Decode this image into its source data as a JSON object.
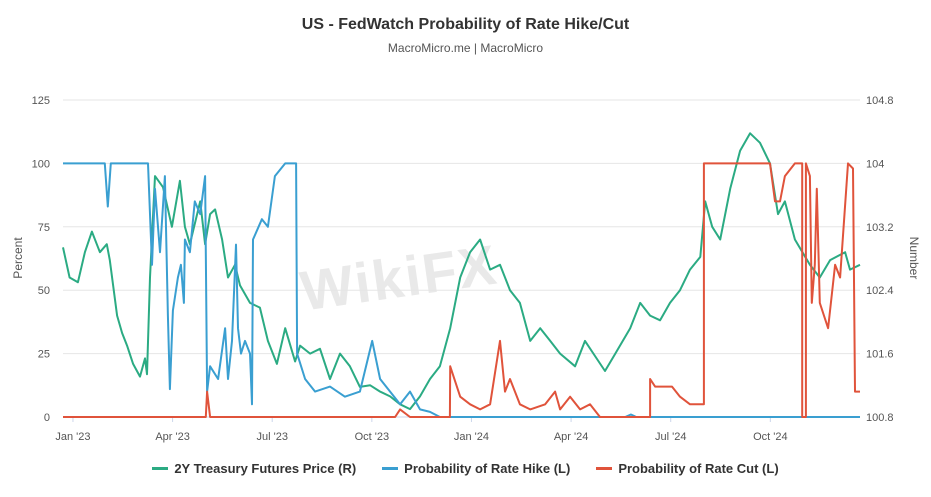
{
  "chart_data": {
    "type": "line",
    "title": "US - FedWatch Probability of Rate Hike/Cut",
    "subtitle": "MacroMicro.me | MacroMicro",
    "x_unit": "months since Jan 2023",
    "xlim": [
      -0.3,
      23.7
    ],
    "x_ticks": [
      {
        "x": 0,
        "label": "Jan '23"
      },
      {
        "x": 3,
        "label": "Apr '23"
      },
      {
        "x": 6,
        "label": "Jul '23"
      },
      {
        "x": 9,
        "label": "Oct '23"
      },
      {
        "x": 12,
        "label": "Jan '24"
      },
      {
        "x": 15,
        "label": "Apr '24"
      },
      {
        "x": 18,
        "label": "Jul '24"
      },
      {
        "x": 21,
        "label": "Oct '24"
      }
    ],
    "y_left": {
      "label": "Percent",
      "ylim": [
        0,
        125
      ],
      "ticks": [
        "0",
        "25",
        "50",
        "75",
        "100",
        "125"
      ]
    },
    "y_right": {
      "label": "Number",
      "ylim": [
        100.8,
        104.8
      ],
      "ticks": [
        "100.8",
        "101.6",
        "102.4",
        "103.2",
        "104",
        "104.8"
      ]
    },
    "grid": true,
    "legend_position": "bottom",
    "series": [
      {
        "name": "2Y Treasury Futures Price (R)",
        "axis": "right",
        "color": "#2bab83",
        "points": [
          [
            -0.3,
            102.94
          ],
          [
            -0.1,
            102.56
          ],
          [
            0.15,
            102.5
          ],
          [
            0.36,
            102.88
          ],
          [
            0.57,
            103.14
          ],
          [
            0.81,
            102.88
          ],
          [
            1.02,
            102.98
          ],
          [
            1.11,
            102.78
          ],
          [
            1.33,
            102.08
          ],
          [
            1.48,
            101.86
          ],
          [
            1.63,
            101.7
          ],
          [
            1.81,
            101.47
          ],
          [
            2.02,
            101.31
          ],
          [
            2.17,
            101.54
          ],
          [
            2.23,
            101.34
          ],
          [
            2.32,
            102.56
          ],
          [
            2.47,
            103.84
          ],
          [
            2.71,
            103.7
          ],
          [
            2.98,
            103.2
          ],
          [
            3.22,
            103.78
          ],
          [
            3.37,
            103.2
          ],
          [
            3.52,
            102.98
          ],
          [
            3.83,
            103.52
          ],
          [
            3.98,
            102.98
          ],
          [
            4.13,
            103.36
          ],
          [
            4.28,
            103.42
          ],
          [
            4.49,
            103.04
          ],
          [
            4.67,
            102.56
          ],
          [
            4.88,
            102.72
          ],
          [
            5.03,
            102.46
          ],
          [
            5.33,
            102.24
          ],
          [
            5.63,
            102.18
          ],
          [
            5.87,
            101.76
          ],
          [
            6.14,
            101.47
          ],
          [
            6.39,
            101.92
          ],
          [
            6.69,
            101.5
          ],
          [
            6.84,
            101.7
          ],
          [
            7.14,
            101.6
          ],
          [
            7.44,
            101.66
          ],
          [
            7.74,
            101.28
          ],
          [
            8.04,
            101.6
          ],
          [
            8.34,
            101.44
          ],
          [
            8.64,
            101.18
          ],
          [
            8.95,
            101.2
          ],
          [
            9.25,
            101.12
          ],
          [
            9.55,
            101.06
          ],
          [
            9.85,
            100.96
          ],
          [
            10.15,
            100.9
          ],
          [
            10.45,
            101.06
          ],
          [
            10.75,
            101.28
          ],
          [
            11.05,
            101.44
          ],
          [
            11.36,
            101.92
          ],
          [
            11.66,
            102.56
          ],
          [
            11.96,
            102.88
          ],
          [
            12.26,
            103.04
          ],
          [
            12.56,
            102.66
          ],
          [
            12.86,
            102.72
          ],
          [
            13.16,
            102.4
          ],
          [
            13.46,
            102.24
          ],
          [
            13.77,
            101.76
          ],
          [
            14.07,
            101.92
          ],
          [
            14.37,
            101.76
          ],
          [
            14.67,
            101.6
          ],
          [
            15.12,
            101.44
          ],
          [
            15.42,
            101.76
          ],
          [
            15.72,
            101.57
          ],
          [
            16.02,
            101.38
          ],
          [
            16.33,
            101.6
          ],
          [
            16.78,
            101.92
          ],
          [
            17.08,
            102.24
          ],
          [
            17.38,
            102.08
          ],
          [
            17.68,
            102.02
          ],
          [
            17.98,
            102.24
          ],
          [
            18.28,
            102.4
          ],
          [
            18.58,
            102.66
          ],
          [
            18.89,
            102.82
          ],
          [
            19.04,
            103.52
          ],
          [
            19.25,
            103.2
          ],
          [
            19.49,
            103.04
          ],
          [
            19.79,
            103.68
          ],
          [
            20.09,
            104.16
          ],
          [
            20.39,
            104.38
          ],
          [
            20.69,
            104.26
          ],
          [
            20.99,
            104.0
          ],
          [
            21.23,
            103.36
          ],
          [
            21.44,
            103.52
          ],
          [
            21.74,
            103.04
          ],
          [
            22.19,
            102.72
          ],
          [
            22.49,
            102.56
          ],
          [
            22.8,
            102.78
          ],
          [
            23.25,
            102.88
          ],
          [
            23.4,
            102.66
          ],
          [
            23.7,
            102.72
          ]
        ]
      },
      {
        "name": "Probability of Rate Hike (L)",
        "axis": "left",
        "color": "#3a9fd1",
        "points": [
          [
            -0.3,
            100
          ],
          [
            0.96,
            100
          ],
          [
            1.05,
            83
          ],
          [
            1.14,
            100
          ],
          [
            2.26,
            100
          ],
          [
            2.38,
            60
          ],
          [
            2.47,
            90
          ],
          [
            2.62,
            65
          ],
          [
            2.77,
            95
          ],
          [
            2.86,
            40
          ],
          [
            2.92,
            11
          ],
          [
            3.01,
            42
          ],
          [
            3.16,
            55
          ],
          [
            3.25,
            60
          ],
          [
            3.34,
            45
          ],
          [
            3.37,
            70
          ],
          [
            3.52,
            65
          ],
          [
            3.67,
            85
          ],
          [
            3.83,
            80
          ],
          [
            3.98,
            95
          ],
          [
            4.04,
            10
          ],
          [
            4.13,
            20
          ],
          [
            4.37,
            15
          ],
          [
            4.58,
            35
          ],
          [
            4.67,
            15
          ],
          [
            4.79,
            30
          ],
          [
            4.91,
            68
          ],
          [
            4.97,
            35
          ],
          [
            5.06,
            25
          ],
          [
            5.18,
            30
          ],
          [
            5.33,
            25
          ],
          [
            5.39,
            5
          ],
          [
            5.42,
            70
          ],
          [
            5.69,
            78
          ],
          [
            5.87,
            75
          ],
          [
            6.08,
            95
          ],
          [
            6.39,
            100
          ],
          [
            6.72,
            100
          ],
          [
            6.75,
            25
          ],
          [
            6.99,
            15
          ],
          [
            7.29,
            10
          ],
          [
            7.74,
            12
          ],
          [
            8.19,
            8
          ],
          [
            8.64,
            10
          ],
          [
            9.01,
            30
          ],
          [
            9.25,
            15
          ],
          [
            9.55,
            10
          ],
          [
            9.85,
            5
          ],
          [
            10.15,
            10
          ],
          [
            10.45,
            3
          ],
          [
            10.75,
            2
          ],
          [
            11.05,
            0
          ],
          [
            16.63,
            0
          ],
          [
            16.8,
            1
          ],
          [
            16.96,
            0
          ],
          [
            23.7,
            0
          ]
        ]
      },
      {
        "name": "Probability of Rate Cut (L)",
        "axis": "left",
        "color": "#e0533b",
        "points": [
          [
            -0.3,
            0
          ],
          [
            4.0,
            0
          ],
          [
            4.04,
            10
          ],
          [
            4.13,
            0
          ],
          [
            9.7,
            0
          ],
          [
            9.85,
            3
          ],
          [
            10.15,
            0
          ],
          [
            11.35,
            0
          ],
          [
            11.36,
            20
          ],
          [
            11.66,
            8
          ],
          [
            11.96,
            5
          ],
          [
            12.26,
            3
          ],
          [
            12.56,
            5
          ],
          [
            12.86,
            30
          ],
          [
            13.01,
            10
          ],
          [
            13.16,
            15
          ],
          [
            13.46,
            5
          ],
          [
            13.77,
            3
          ],
          [
            14.22,
            5
          ],
          [
            14.52,
            10
          ],
          [
            14.67,
            3
          ],
          [
            14.97,
            8
          ],
          [
            15.27,
            3
          ],
          [
            15.57,
            5
          ],
          [
            15.87,
            0
          ],
          [
            17.38,
            0
          ],
          [
            17.38,
            15
          ],
          [
            17.53,
            12
          ],
          [
            18.04,
            12
          ],
          [
            18.28,
            8
          ],
          [
            18.58,
            5
          ],
          [
            19.0,
            5
          ],
          [
            19.0,
            100
          ],
          [
            20.99,
            100
          ],
          [
            21.14,
            85
          ],
          [
            21.29,
            85
          ],
          [
            21.44,
            95
          ],
          [
            21.74,
            100
          ],
          [
            21.96,
            100
          ],
          [
            21.96,
            0
          ],
          [
            22.07,
            0
          ],
          [
            22.07,
            100
          ],
          [
            22.19,
            95
          ],
          [
            22.25,
            45
          ],
          [
            22.34,
            60
          ],
          [
            22.4,
            90
          ],
          [
            22.49,
            45
          ],
          [
            22.74,
            35
          ],
          [
            22.95,
            60
          ],
          [
            23.1,
            55
          ],
          [
            23.34,
            100
          ],
          [
            23.49,
            98
          ],
          [
            23.55,
            10
          ],
          [
            23.7,
            10
          ]
        ]
      }
    ],
    "watermark": "WikiFX"
  }
}
